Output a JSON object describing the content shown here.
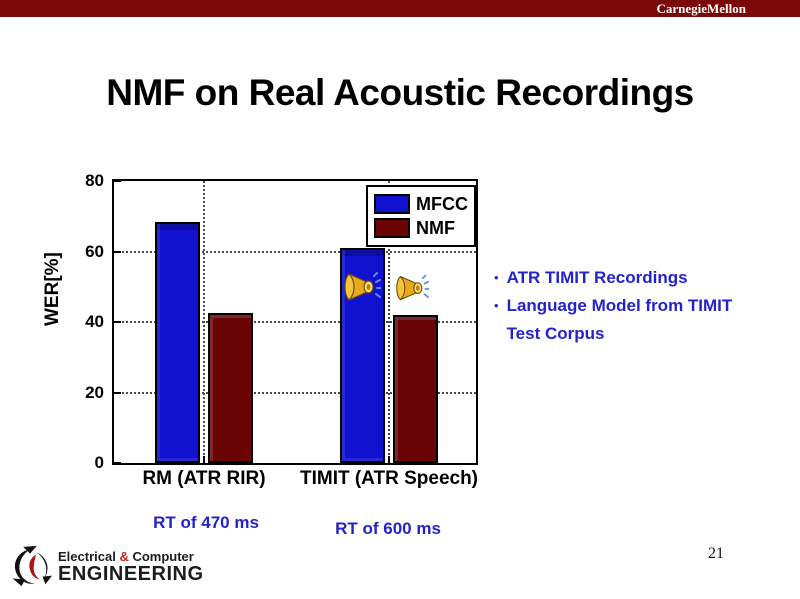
{
  "header": {
    "brand": "CarnegieMellon"
  },
  "slide": {
    "title": "NMF on Real Acoustic Recordings",
    "page_number": "21"
  },
  "colors": {
    "header_bar": "#7a0808",
    "mfcc": "#1111d0",
    "nmf": "#6b0404",
    "text_blue": "#2323cc",
    "ampersand_red": "#cc2127"
  },
  "chart_data": {
    "type": "bar",
    "title": "",
    "xlabel": "",
    "ylabel": "WER[%]",
    "ylim": [
      0,
      80
    ],
    "yticks": [
      0,
      20,
      40,
      60,
      80
    ],
    "grid": true,
    "legend_position": "top-right",
    "categories": [
      "RM (ATR RIR)",
      "TIMIT (ATR Speech)"
    ],
    "series": [
      {
        "name": "MFCC",
        "color": "#1111d0",
        "values": [
          68.5,
          61
        ]
      },
      {
        "name": "NMF",
        "color": "#6b0404",
        "values": [
          42.5,
          42
        ]
      }
    ],
    "overlays": [
      {
        "icon": "speaker-icon",
        "category": "TIMIT (ATR Speech)",
        "series": "MFCC"
      },
      {
        "icon": "speaker-icon",
        "category": "TIMIT (ATR Speech)",
        "series": "NMF"
      }
    ]
  },
  "annotations": {
    "bullets": [
      "ATR TIMIT Recordings",
      "Language Model from TIMIT Test Corpus"
    ],
    "rt_labels": [
      "RT of 470 ms",
      "RT of 600 ms"
    ]
  },
  "footer": {
    "line1_pre": "Electrical ",
    "amp": "&",
    "line1_post": " Computer",
    "line2": "ENGINEERING"
  }
}
